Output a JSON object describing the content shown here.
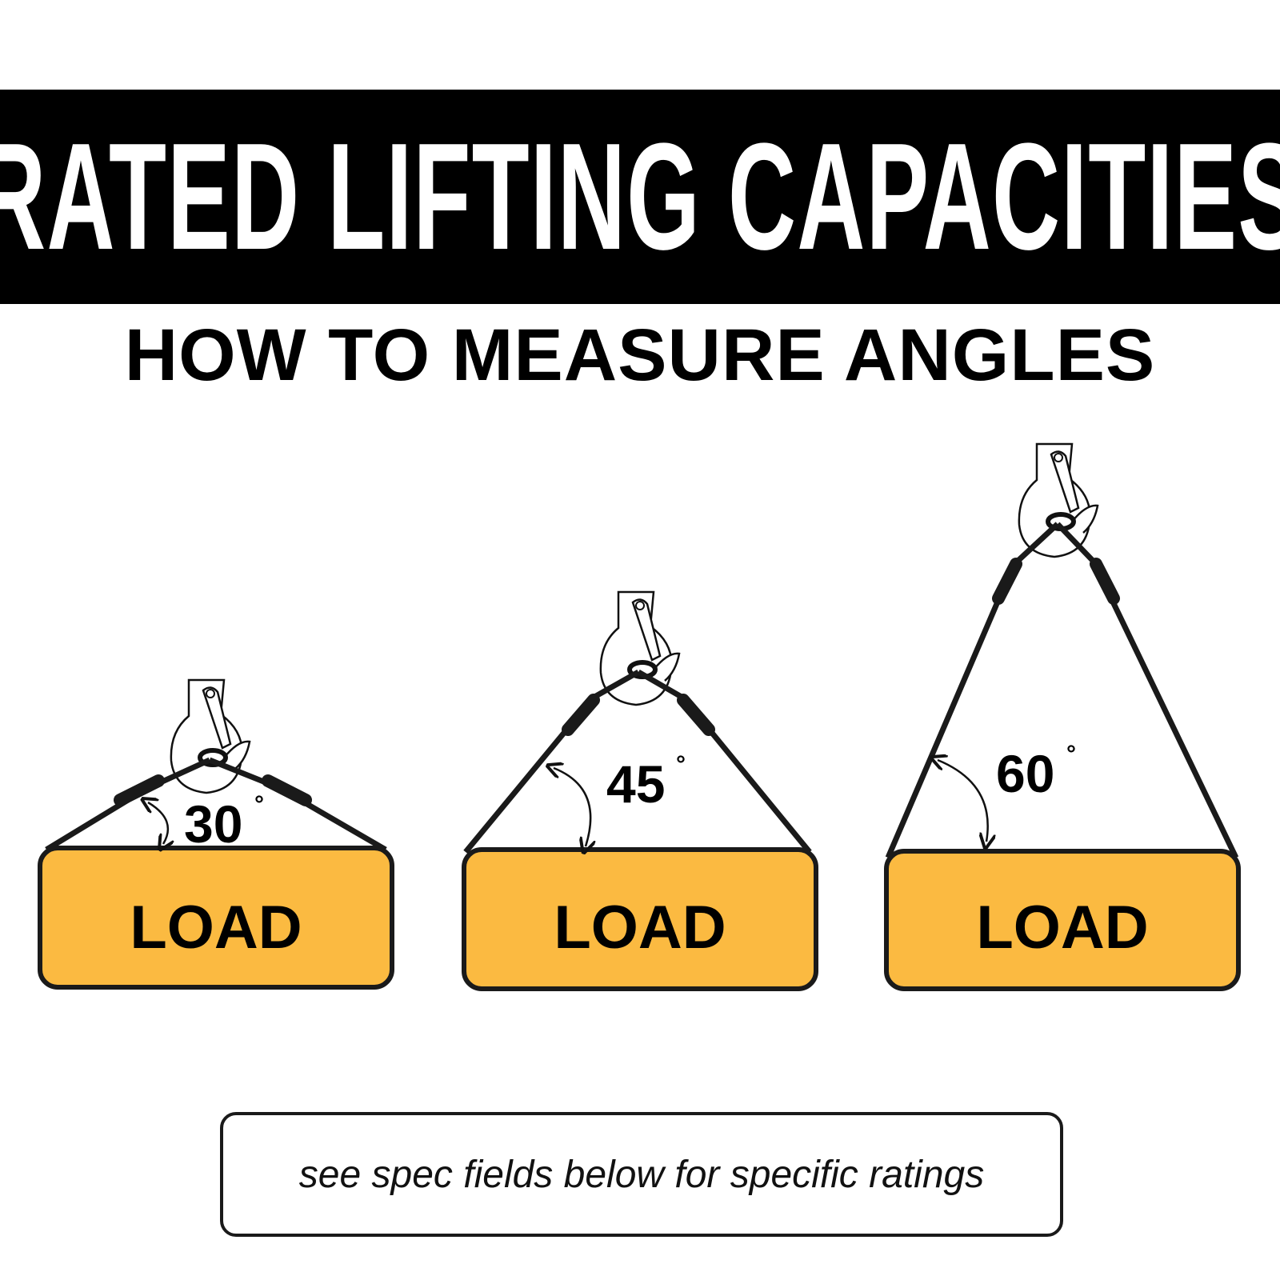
{
  "header": {
    "title": "RATED LIFTING CAPACITIES"
  },
  "subtitle": "HOW TO MEASURE ANGLES",
  "diagrams": [
    {
      "angle": "30",
      "degree_symbol": "°",
      "load_label": "LOAD"
    },
    {
      "angle": "45",
      "degree_symbol": "°",
      "load_label": "LOAD"
    },
    {
      "angle": "60",
      "degree_symbol": "°",
      "load_label": "LOAD"
    }
  ],
  "footer": {
    "note": "see spec fields below for specific ratings"
  },
  "colors": {
    "banner": "#000000",
    "load_fill": "#FBBA41",
    "outline": "#1a1a1a"
  }
}
